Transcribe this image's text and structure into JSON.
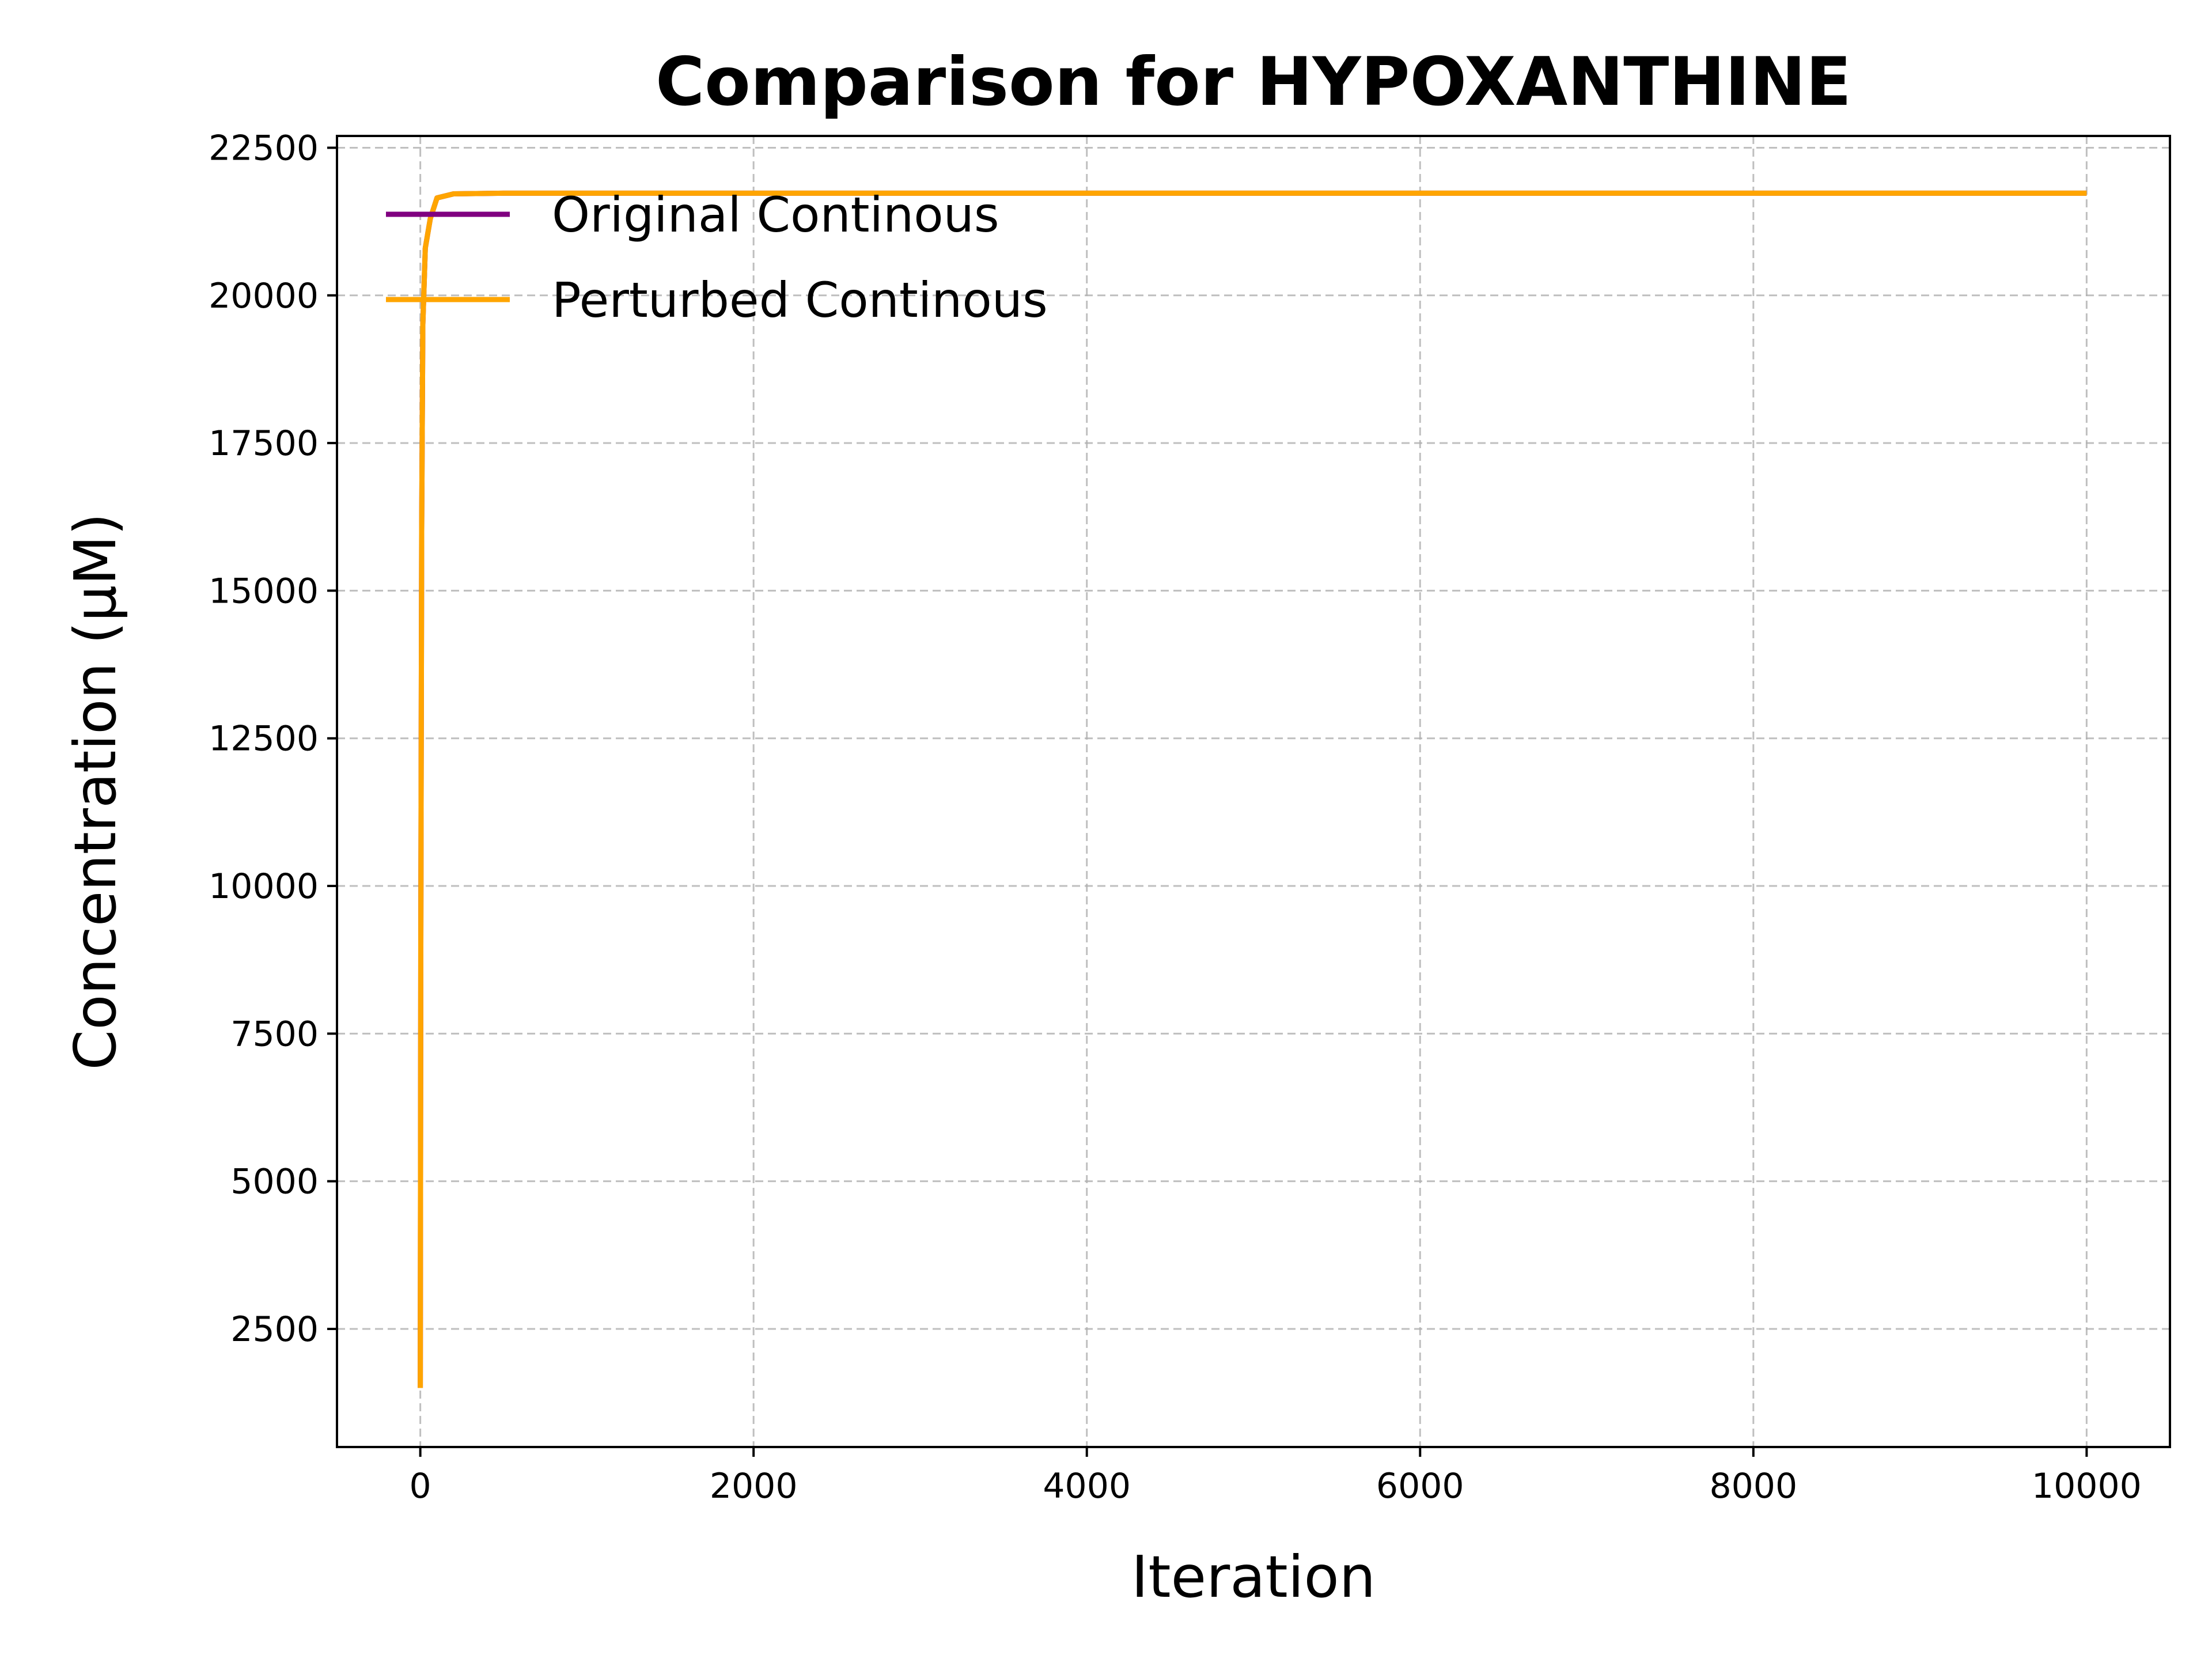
{
  "chart_data": {
    "type": "line",
    "title": "Comparison for HYPOXANTHINE",
    "xlabel": "Iteration",
    "ylabel": "Concentration (μM)",
    "xlim": [
      -500,
      10500
    ],
    "ylim": [
      500,
      22700
    ],
    "xticks": [
      0,
      2000,
      4000,
      6000,
      8000,
      10000
    ],
    "yticks": [
      2500,
      5000,
      7500,
      10000,
      12500,
      15000,
      17500,
      20000,
      22500
    ],
    "xtick_labels": [
      "0",
      "2000",
      "4000",
      "6000",
      "8000",
      "10000"
    ],
    "ytick_labels": [
      "2500",
      "5000",
      "7500",
      "10000",
      "12500",
      "15000",
      "17500",
      "20000",
      "22500"
    ],
    "grid": true,
    "legend_position": "top-left",
    "series": [
      {
        "name": "Original Continous",
        "color": "#800080",
        "x": [
          0,
          3,
          8,
          15,
          30,
          60,
          100,
          200,
          500,
          1000,
          2000,
          4000,
          6000,
          8000,
          10000
        ],
        "y": [
          1500,
          9000,
          16000,
          19500,
          20800,
          21300,
          21650,
          21720,
          21730,
          21730,
          21730,
          21730,
          21730,
          21730,
          21730
        ]
      },
      {
        "name": "Perturbed Continous",
        "color": "#ffa500",
        "x": [
          0,
          3,
          8,
          15,
          30,
          60,
          100,
          200,
          500,
          1000,
          2000,
          4000,
          6000,
          8000,
          10000
        ],
        "y": [
          1500,
          9000,
          16000,
          19500,
          20800,
          21300,
          21650,
          21720,
          21730,
          21730,
          21730,
          21730,
          21730,
          21730,
          21730
        ]
      }
    ]
  }
}
